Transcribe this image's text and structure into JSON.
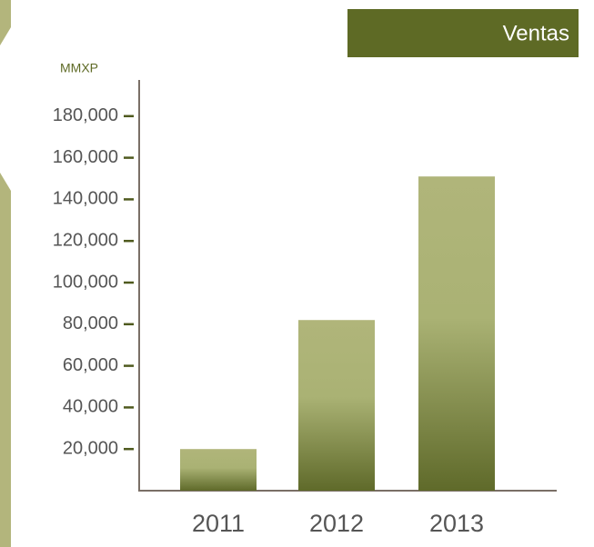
{
  "chart_data": {
    "type": "bar",
    "title": "Ventas",
    "y_label": "MMXP",
    "categories": [
      "2011",
      "2012",
      "2013"
    ],
    "values": [
      20000,
      82000,
      151000
    ],
    "color": "#5f6a2a",
    "ylim": [
      0,
      200000
    ],
    "yticks": [
      {
        "value": 20000,
        "label": "20,000"
      },
      {
        "value": 40000,
        "label": "40,000"
      },
      {
        "value": 60000,
        "label": "60,000"
      },
      {
        "value": 80000,
        "label": "80,000"
      },
      {
        "value": 100000,
        "label": "100,000"
      },
      {
        "value": 120000,
        "label": "120,000"
      },
      {
        "value": 140000,
        "label": "140,000"
      },
      {
        "value": 160000,
        "label": "160,000"
      },
      {
        "value": 180000,
        "label": "180,000"
      }
    ]
  }
}
